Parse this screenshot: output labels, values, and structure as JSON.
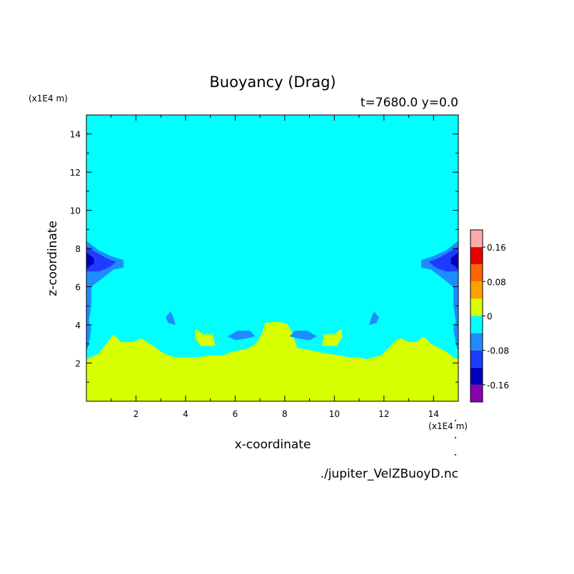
{
  "chart_data": {
    "type": "heatmap",
    "subtype": "filled-contour",
    "title": "Buoyancy (Drag)",
    "subtitle": "t=7680.0 y=0.0",
    "xlabel": "x-coordinate",
    "ylabel": "z-coordinate",
    "x_unit": "(x1E4 m)",
    "y_unit": "(x1E4 m)",
    "xlim": [
      0,
      15
    ],
    "ylim": [
      0,
      15
    ],
    "x_ticks": [
      "2",
      "4",
      "6",
      "8",
      "10",
      "12",
      "14"
    ],
    "y_ticks": [
      "2",
      "4",
      "6",
      "8",
      "10",
      "12",
      "14"
    ],
    "x_tick_values": [
      2,
      4,
      6,
      8,
      10,
      12,
      14
    ],
    "y_tick_values": [
      2,
      4,
      6,
      8,
      10,
      12,
      14
    ],
    "colorbar": {
      "levels": [
        -0.2,
        -0.16,
        -0.12,
        -0.08,
        -0.04,
        0,
        0.04,
        0.08,
        0.12,
        0.16,
        0.2
      ],
      "colors": [
        "#8b00b0",
        "#0000bb",
        "#1e3cff",
        "#1e8cff",
        "#00ffff",
        "#d7ff00",
        "#ffa000",
        "#ff6400",
        "#e60000",
        "#ffaaaa"
      ],
      "tick_labels": [
        "0.16",
        "0.08",
        "0",
        "-0.08",
        "-0.16"
      ],
      "tick_values": [
        0.16,
        0.08,
        0,
        -0.08,
        -0.16
      ]
    },
    "background_level_color": "#00ffff",
    "grid": false,
    "regions": [
      {
        "value_range": "0 to 0.04",
        "color": "#d7ff00",
        "polygon": [
          [
            0,
            0
          ],
          [
            0,
            2.2
          ],
          [
            0.5,
            2.5
          ],
          [
            0.8,
            3.0
          ],
          [
            1.1,
            3.5
          ],
          [
            1.4,
            3.1
          ],
          [
            1.9,
            3.1
          ],
          [
            2.2,
            3.3
          ],
          [
            2.7,
            2.9
          ],
          [
            3.0,
            2.6
          ],
          [
            3.3,
            2.4
          ],
          [
            3.6,
            2.3
          ],
          [
            4.0,
            2.3
          ],
          [
            4.5,
            2.3
          ],
          [
            5.0,
            2.4
          ],
          [
            5.5,
            2.4
          ],
          [
            5.9,
            2.6
          ],
          [
            6.3,
            2.7
          ],
          [
            6.6,
            2.8
          ],
          [
            6.9,
            3.1
          ],
          [
            7.1,
            3.6
          ],
          [
            7.2,
            4.1
          ],
          [
            7.5,
            4.15
          ],
          [
            7.8,
            4.15
          ],
          [
            8.1,
            4.05
          ],
          [
            8.3,
            3.6
          ],
          [
            8.4,
            3.2
          ],
          [
            8.5,
            2.8
          ],
          [
            8.9,
            2.7
          ],
          [
            9.3,
            2.6
          ],
          [
            9.7,
            2.5
          ],
          [
            10.2,
            2.4
          ],
          [
            10.6,
            2.3
          ],
          [
            11.0,
            2.3
          ],
          [
            11.3,
            2.2
          ],
          [
            11.6,
            2.3
          ],
          [
            11.9,
            2.4
          ],
          [
            12.2,
            2.8
          ],
          [
            12.5,
            3.2
          ],
          [
            12.7,
            3.3
          ],
          [
            13.0,
            3.1
          ],
          [
            13.3,
            3.1
          ],
          [
            13.6,
            3.4
          ],
          [
            13.9,
            3.0
          ],
          [
            14.2,
            2.8
          ],
          [
            14.5,
            2.6
          ],
          [
            14.8,
            2.3
          ],
          [
            15,
            2.2
          ],
          [
            15,
            0
          ]
        ]
      },
      {
        "value_range": "0 to 0.04",
        "color": "#d7ff00",
        "polygon": [
          [
            4.4,
            3.8
          ],
          [
            4.7,
            3.5
          ],
          [
            5.1,
            3.5
          ],
          [
            5.2,
            2.9
          ],
          [
            4.6,
            2.9
          ],
          [
            4.4,
            3.3
          ]
        ]
      },
      {
        "value_range": "0 to 0.04",
        "color": "#d7ff00",
        "polygon": [
          [
            10.3,
            3.8
          ],
          [
            10.0,
            3.5
          ],
          [
            9.6,
            3.5
          ],
          [
            9.5,
            2.9
          ],
          [
            10.1,
            2.9
          ],
          [
            10.3,
            3.3
          ]
        ]
      },
      {
        "value_range": "-0.08 to -0.04",
        "color": "#1e8cff",
        "polygon": [
          [
            0,
            8.4
          ],
          [
            0.5,
            7.9
          ],
          [
            1.0,
            7.6
          ],
          [
            1.5,
            7.4
          ],
          [
            1.5,
            7.0
          ],
          [
            1.1,
            6.9
          ],
          [
            0.7,
            6.5
          ],
          [
            0.5,
            6.3
          ],
          [
            0.2,
            6.0
          ],
          [
            0.2,
            5.0
          ],
          [
            0.1,
            4.2
          ],
          [
            0.2,
            3.8
          ],
          [
            0.1,
            3.0
          ],
          [
            0,
            2.6
          ]
        ]
      },
      {
        "value_range": "-0.12 to -0.08",
        "color": "#1e3cff",
        "polygon": [
          [
            0,
            8.1
          ],
          [
            0.4,
            7.8
          ],
          [
            0.8,
            7.5
          ],
          [
            1.2,
            7.3
          ],
          [
            0.9,
            7.0
          ],
          [
            0.5,
            6.8
          ],
          [
            0,
            6.8
          ]
        ]
      },
      {
        "value_range": "-0.16 to -0.12",
        "color": "#0000bb",
        "polygon": [
          [
            0,
            7.8
          ],
          [
            0.3,
            7.5
          ],
          [
            0.3,
            7.2
          ],
          [
            0,
            7.0
          ]
        ]
      },
      {
        "value_range": "-0.08 to -0.04",
        "color": "#1e8cff",
        "polygon": [
          [
            15,
            8.4
          ],
          [
            14.5,
            7.9
          ],
          [
            14.0,
            7.6
          ],
          [
            13.5,
            7.4
          ],
          [
            13.5,
            7.0
          ],
          [
            13.9,
            6.9
          ],
          [
            14.3,
            6.5
          ],
          [
            14.5,
            6.3
          ],
          [
            14.8,
            6.0
          ],
          [
            14.8,
            5.0
          ],
          [
            14.9,
            4.2
          ],
          [
            14.8,
            3.8
          ],
          [
            14.9,
            3.0
          ],
          [
            15,
            2.6
          ]
        ]
      },
      {
        "value_range": "-0.12 to -0.08",
        "color": "#1e3cff",
        "polygon": [
          [
            15,
            8.1
          ],
          [
            14.6,
            7.8
          ],
          [
            14.2,
            7.5
          ],
          [
            13.8,
            7.3
          ],
          [
            14.1,
            7.0
          ],
          [
            14.5,
            6.8
          ],
          [
            15,
            6.8
          ]
        ]
      },
      {
        "value_range": "-0.16 to -0.12",
        "color": "#0000bb",
        "polygon": [
          [
            15,
            7.8
          ],
          [
            14.7,
            7.5
          ],
          [
            14.7,
            7.2
          ],
          [
            15,
            7.0
          ]
        ]
      },
      {
        "value_range": "-0.08 to -0.04",
        "color": "#1e8cff",
        "polygon": [
          [
            3.2,
            4.4
          ],
          [
            3.4,
            4.7
          ],
          [
            3.5,
            4.4
          ],
          [
            3.6,
            4.0
          ],
          [
            3.3,
            4.1
          ]
        ]
      },
      {
        "value_range": "-0.08 to -0.04",
        "color": "#1e8cff",
        "polygon": [
          [
            11.8,
            4.4
          ],
          [
            11.6,
            4.7
          ],
          [
            11.5,
            4.4
          ],
          [
            11.4,
            4.0
          ],
          [
            11.7,
            4.1
          ]
        ]
      },
      {
        "value_range": "-0.08 to -0.04",
        "color": "#1e8cff",
        "polygon": [
          [
            5.7,
            3.4
          ],
          [
            6.1,
            3.7
          ],
          [
            6.6,
            3.7
          ],
          [
            6.8,
            3.4
          ],
          [
            6.5,
            3.3
          ],
          [
            6.0,
            3.2
          ]
        ]
      },
      {
        "value_range": "-0.08 to -0.04",
        "color": "#1e8cff",
        "polygon": [
          [
            9.3,
            3.4
          ],
          [
            8.9,
            3.7
          ],
          [
            8.4,
            3.7
          ],
          [
            8.2,
            3.4
          ],
          [
            8.5,
            3.3
          ],
          [
            9.0,
            3.2
          ]
        ]
      }
    ],
    "footer": "./jupiter_VelZBuoyD.nc"
  }
}
